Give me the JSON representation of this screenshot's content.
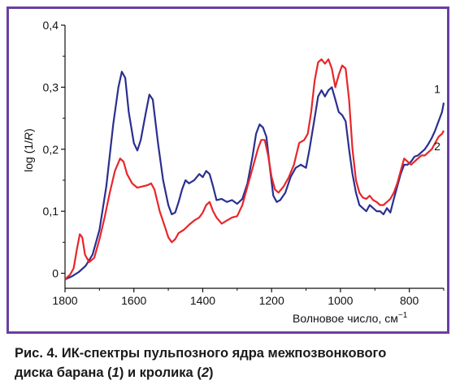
{
  "chart_data": {
    "type": "line",
    "title": "",
    "xlabel": "Волновое число, см",
    "xlabel_sup": "−1",
    "ylabel_prefix": "log (1/",
    "ylabel_italic": "R",
    "ylabel_suffix": ")",
    "xlim": [
      1800,
      700
    ],
    "ylim": [
      -0.01,
      0.4
    ],
    "x_ticks": [
      1800,
      1600,
      1400,
      1200,
      1000,
      800
    ],
    "x_tick_labels": [
      "1800",
      "1600",
      "1400",
      "1200",
      "1000",
      "800"
    ],
    "y_ticks": [
      0,
      0.1,
      0.2,
      0.3,
      0.4
    ],
    "y_tick_labels": [
      "0",
      "0,1",
      "0,2",
      "0,3",
      "0,4"
    ],
    "grid": false,
    "series": [
      {
        "name": "1",
        "color": "#2b2f8f",
        "points": [
          [
            1800,
            -0.01
          ],
          [
            1780,
            -0.005
          ],
          [
            1760,
            0.002
          ],
          [
            1740,
            0.012
          ],
          [
            1720,
            0.03
          ],
          [
            1700,
            0.07
          ],
          [
            1680,
            0.14
          ],
          [
            1660,
            0.24
          ],
          [
            1645,
            0.3
          ],
          [
            1635,
            0.325
          ],
          [
            1625,
            0.315
          ],
          [
            1615,
            0.26
          ],
          [
            1600,
            0.21
          ],
          [
            1590,
            0.198
          ],
          [
            1580,
            0.215
          ],
          [
            1565,
            0.26
          ],
          [
            1555,
            0.288
          ],
          [
            1545,
            0.28
          ],
          [
            1530,
            0.21
          ],
          [
            1515,
            0.15
          ],
          [
            1500,
            0.11
          ],
          [
            1490,
            0.095
          ],
          [
            1480,
            0.098
          ],
          [
            1470,
            0.115
          ],
          [
            1460,
            0.135
          ],
          [
            1450,
            0.15
          ],
          [
            1440,
            0.145
          ],
          [
            1425,
            0.15
          ],
          [
            1410,
            0.16
          ],
          [
            1400,
            0.155
          ],
          [
            1390,
            0.165
          ],
          [
            1380,
            0.16
          ],
          [
            1370,
            0.14
          ],
          [
            1360,
            0.118
          ],
          [
            1345,
            0.12
          ],
          [
            1330,
            0.115
          ],
          [
            1315,
            0.118
          ],
          [
            1300,
            0.112
          ],
          [
            1285,
            0.12
          ],
          [
            1270,
            0.145
          ],
          [
            1255,
            0.19
          ],
          [
            1245,
            0.225
          ],
          [
            1235,
            0.24
          ],
          [
            1225,
            0.235
          ],
          [
            1215,
            0.22
          ],
          [
            1205,
            0.17
          ],
          [
            1195,
            0.125
          ],
          [
            1185,
            0.115
          ],
          [
            1175,
            0.118
          ],
          [
            1160,
            0.13
          ],
          [
            1145,
            0.155
          ],
          [
            1130,
            0.17
          ],
          [
            1115,
            0.175
          ],
          [
            1100,
            0.17
          ],
          [
            1090,
            0.2
          ],
          [
            1075,
            0.25
          ],
          [
            1065,
            0.285
          ],
          [
            1055,
            0.295
          ],
          [
            1045,
            0.285
          ],
          [
            1035,
            0.295
          ],
          [
            1025,
            0.3
          ],
          [
            1015,
            0.28
          ],
          [
            1005,
            0.26
          ],
          [
            995,
            0.255
          ],
          [
            985,
            0.245
          ],
          [
            975,
            0.2
          ],
          [
            965,
            0.16
          ],
          [
            955,
            0.13
          ],
          [
            945,
            0.11
          ],
          [
            935,
            0.105
          ],
          [
            925,
            0.1
          ],
          [
            915,
            0.11
          ],
          [
            905,
            0.105
          ],
          [
            895,
            0.1
          ],
          [
            885,
            0.1
          ],
          [
            875,
            0.095
          ],
          [
            865,
            0.105
          ],
          [
            855,
            0.098
          ],
          [
            845,
            0.12
          ],
          [
            835,
            0.14
          ],
          [
            825,
            0.16
          ],
          [
            815,
            0.175
          ],
          [
            805,
            0.175
          ],
          [
            795,
            0.18
          ],
          [
            785,
            0.188
          ],
          [
            775,
            0.19
          ],
          [
            765,
            0.195
          ],
          [
            755,
            0.2
          ],
          [
            745,
            0.208
          ],
          [
            735,
            0.218
          ],
          [
            725,
            0.23
          ],
          [
            715,
            0.245
          ],
          [
            705,
            0.26
          ],
          [
            700,
            0.275
          ]
        ]
      },
      {
        "name": "2",
        "color": "#e8262a",
        "points": [
          [
            1800,
            -0.01
          ],
          [
            1785,
            -0.002
          ],
          [
            1775,
            0.008
          ],
          [
            1765,
            0.04
          ],
          [
            1757,
            0.063
          ],
          [
            1750,
            0.058
          ],
          [
            1742,
            0.03
          ],
          [
            1730,
            0.018
          ],
          [
            1715,
            0.025
          ],
          [
            1700,
            0.055
          ],
          [
            1685,
            0.09
          ],
          [
            1670,
            0.13
          ],
          [
            1655,
            0.165
          ],
          [
            1640,
            0.185
          ],
          [
            1630,
            0.18
          ],
          [
            1620,
            0.16
          ],
          [
            1605,
            0.145
          ],
          [
            1590,
            0.138
          ],
          [
            1575,
            0.14
          ],
          [
            1560,
            0.142
          ],
          [
            1550,
            0.145
          ],
          [
            1540,
            0.135
          ],
          [
            1525,
            0.1
          ],
          [
            1510,
            0.075
          ],
          [
            1500,
            0.058
          ],
          [
            1490,
            0.05
          ],
          [
            1480,
            0.055
          ],
          [
            1470,
            0.065
          ],
          [
            1455,
            0.07
          ],
          [
            1440,
            0.078
          ],
          [
            1425,
            0.085
          ],
          [
            1410,
            0.09
          ],
          [
            1400,
            0.098
          ],
          [
            1390,
            0.11
          ],
          [
            1380,
            0.115
          ],
          [
            1370,
            0.1
          ],
          [
            1360,
            0.09
          ],
          [
            1345,
            0.08
          ],
          [
            1330,
            0.085
          ],
          [
            1315,
            0.09
          ],
          [
            1300,
            0.092
          ],
          [
            1285,
            0.11
          ],
          [
            1270,
            0.14
          ],
          [
            1255,
            0.17
          ],
          [
            1240,
            0.2
          ],
          [
            1230,
            0.215
          ],
          [
            1220,
            0.215
          ],
          [
            1210,
            0.19
          ],
          [
            1200,
            0.155
          ],
          [
            1190,
            0.135
          ],
          [
            1180,
            0.13
          ],
          [
            1165,
            0.14
          ],
          [
            1150,
            0.155
          ],
          [
            1135,
            0.175
          ],
          [
            1120,
            0.21
          ],
          [
            1105,
            0.215
          ],
          [
            1095,
            0.225
          ],
          [
            1085,
            0.26
          ],
          [
            1075,
            0.31
          ],
          [
            1065,
            0.34
          ],
          [
            1055,
            0.345
          ],
          [
            1045,
            0.338
          ],
          [
            1035,
            0.345
          ],
          [
            1025,
            0.33
          ],
          [
            1015,
            0.3
          ],
          [
            1005,
            0.32
          ],
          [
            995,
            0.335
          ],
          [
            985,
            0.33
          ],
          [
            975,
            0.28
          ],
          [
            965,
            0.2
          ],
          [
            955,
            0.15
          ],
          [
            945,
            0.13
          ],
          [
            935,
            0.122
          ],
          [
            925,
            0.12
          ],
          [
            915,
            0.125
          ],
          [
            905,
            0.118
          ],
          [
            895,
            0.115
          ],
          [
            885,
            0.11
          ],
          [
            875,
            0.11
          ],
          [
            865,
            0.115
          ],
          [
            855,
            0.12
          ],
          [
            845,
            0.13
          ],
          [
            835,
            0.145
          ],
          [
            825,
            0.165
          ],
          [
            815,
            0.185
          ],
          [
            805,
            0.18
          ],
          [
            795,
            0.175
          ],
          [
            785,
            0.18
          ],
          [
            775,
            0.185
          ],
          [
            765,
            0.19
          ],
          [
            755,
            0.19
          ],
          [
            745,
            0.195
          ],
          [
            735,
            0.2
          ],
          [
            725,
            0.21
          ],
          [
            715,
            0.22
          ],
          [
            705,
            0.225
          ],
          [
            700,
            0.23
          ]
        ]
      }
    ]
  },
  "caption": {
    "line1": "Рис. 4. ИК-спектры пульпозного ядра межпозвонкового",
    "line2_pre": "диска барана (",
    "line2_n1": "1",
    "line2_mid": ") и кролика (",
    "line2_n2": "2",
    "line2_post": ")"
  }
}
